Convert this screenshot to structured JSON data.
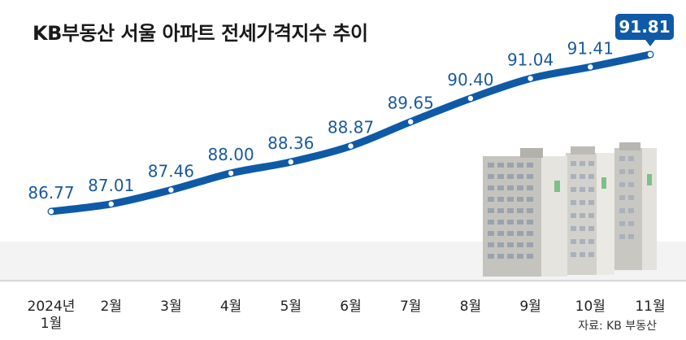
{
  "chart_data": {
    "type": "line",
    "title": "KB부동산 서울 아파트 전세가격지수 추이",
    "categories": [
      "2024년\n1월",
      "2월",
      "3월",
      "4월",
      "5월",
      "6월",
      "7월",
      "8월",
      "9월",
      "10월",
      "11월"
    ],
    "series": [
      {
        "values": [
          86.77,
          87.01,
          87.46,
          88.0,
          88.36,
          88.87,
          89.65,
          90.4,
          91.04,
          91.41,
          91.81
        ]
      }
    ],
    "value_labels": [
      "86.77",
      "87.01",
      "87.46",
      "88.00",
      "88.36",
      "88.87",
      "89.65",
      "90.40",
      "91.04",
      "91.41",
      "91.81"
    ],
    "highlight_index": 10,
    "source": "자료: KB 부동산",
    "grid": false,
    "legend": "none",
    "colors": {
      "line": "#0e5aa7",
      "highlight_box": "#0e5aa7",
      "label": "#1a5a9c"
    }
  }
}
